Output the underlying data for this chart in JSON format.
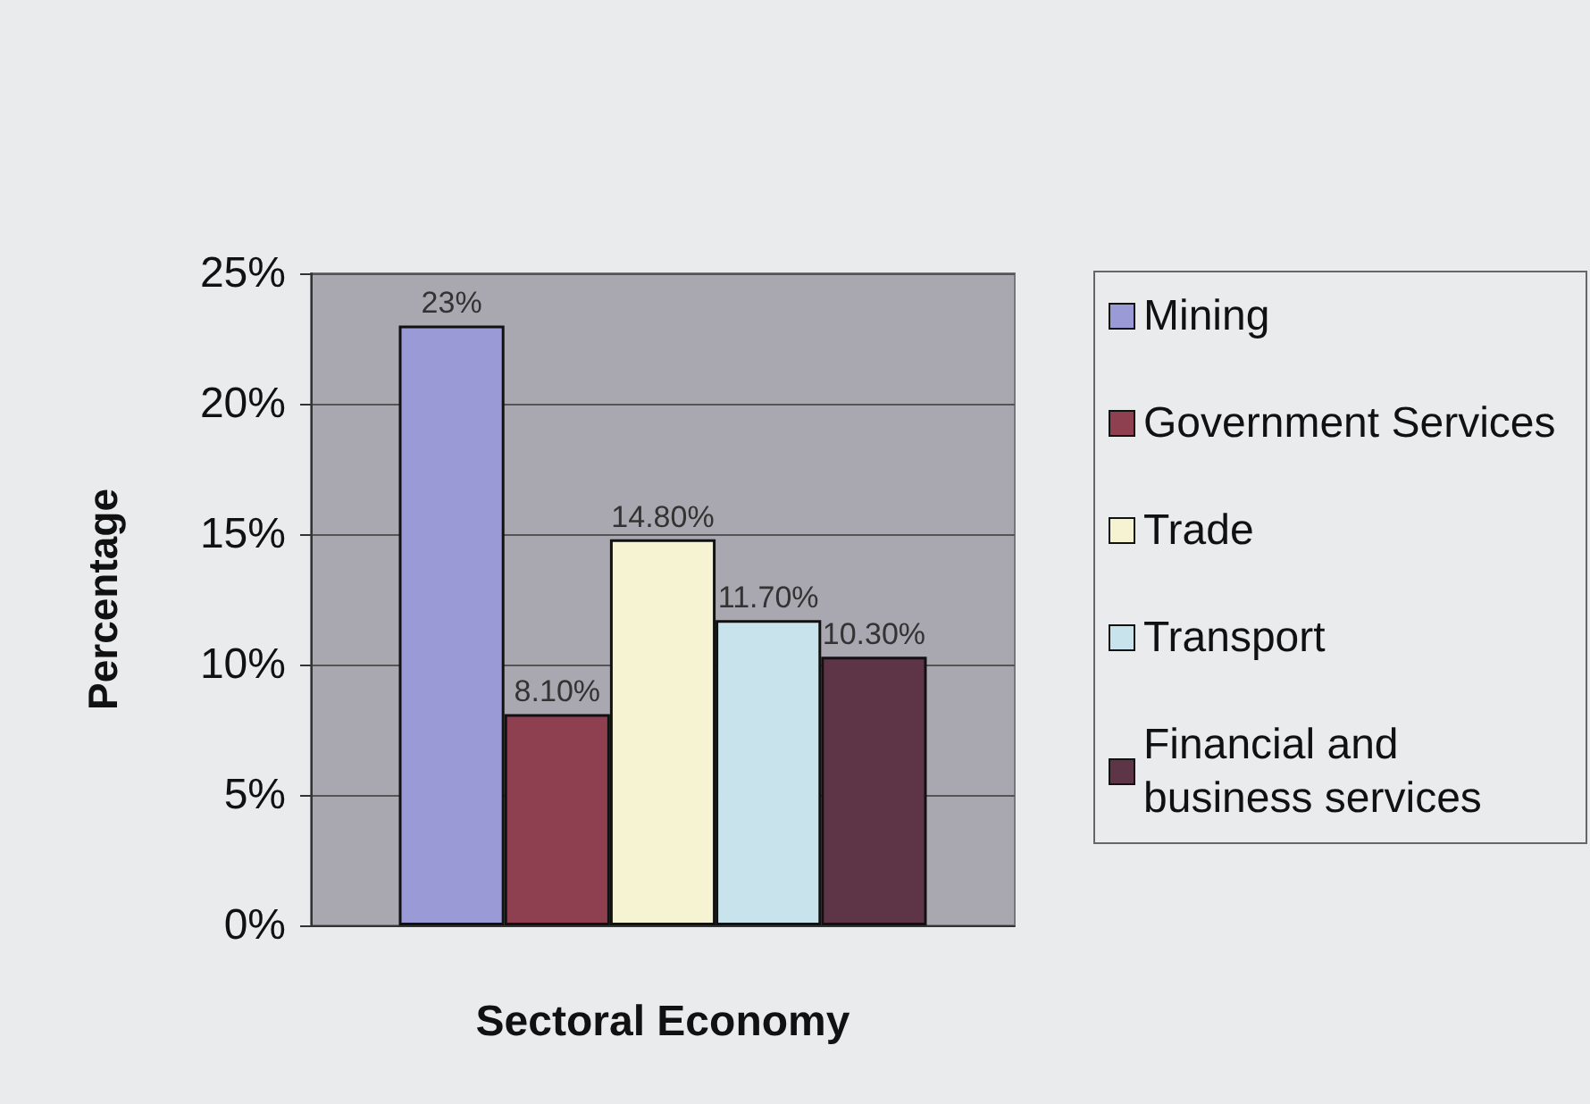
{
  "chart_data": {
    "type": "bar",
    "xlabel": "Sectoral Economy",
    "ylabel": "Percentage",
    "categories": [
      null
    ],
    "series": [
      {
        "name": "Mining",
        "color": "#9a9ad6",
        "values": [
          23
        ],
        "value_labels": [
          "23%"
        ]
      },
      {
        "name": "Government Services",
        "color": "#8e3f50",
        "values": [
          8.1
        ],
        "value_labels": [
          "8.10%"
        ]
      },
      {
        "name": "Trade",
        "color": "#f5f3d2",
        "values": [
          14.8
        ],
        "value_labels": [
          "14.80%"
        ]
      },
      {
        "name": "Transport",
        "color": "#c8e3ec",
        "values": [
          11.7
        ],
        "value_labels": [
          "11.70%"
        ]
      },
      {
        "name": "Financial and business services",
        "color": "#5e3447",
        "values": [
          10.3
        ],
        "value_labels": [
          "10.30%"
        ]
      }
    ],
    "ylim": [
      0,
      25
    ],
    "yticks": [
      {
        "value": 0,
        "label": "0%"
      },
      {
        "value": 5,
        "label": "5%"
      },
      {
        "value": 10,
        "label": "10%"
      },
      {
        "value": 15,
        "label": "15%"
      },
      {
        "value": 20,
        "label": "20%"
      },
      {
        "value": 25,
        "label": "25%"
      }
    ],
    "grid": "y",
    "legend": "right"
  }
}
